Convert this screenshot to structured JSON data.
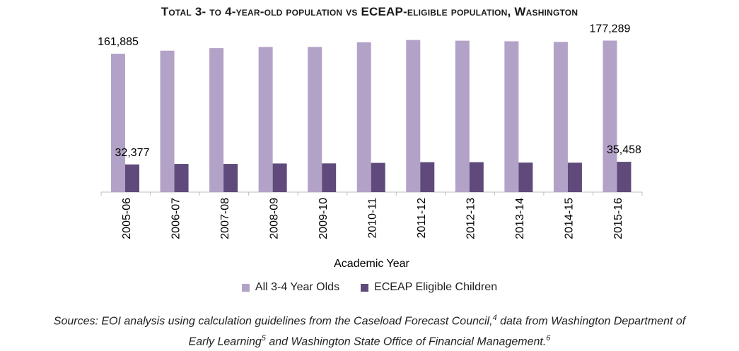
{
  "chart_data": {
    "type": "bar",
    "title": "Total 3- to 4-year-old population vs ECEAP-eligible population, Washington",
    "xlabel": "Academic Year",
    "ylabel": "",
    "ylim": [
      0,
      200000
    ],
    "grid": false,
    "legend_position": "bottom",
    "categories": [
      "2005-06",
      "2006-07",
      "2007-08",
      "2008-09",
      "2009-10",
      "2010-11",
      "2011-12",
      "2012-13",
      "2013-14",
      "2014-15",
      "2015-16"
    ],
    "series": [
      {
        "name": "All 3-4 Year Olds",
        "color": "#b3a2c7",
        "values": [
          161885,
          165500,
          168500,
          169800,
          169800,
          175300,
          178000,
          177200,
          176500,
          175800,
          177289
        ]
      },
      {
        "name": "ECEAP Eligible Children",
        "color": "#604a7b",
        "values": [
          32377,
          33000,
          33000,
          33500,
          33600,
          34200,
          35000,
          35000,
          34500,
          34400,
          35458
        ]
      }
    ],
    "data_labels": [
      {
        "series": 0,
        "index": 0,
        "text": "161,885"
      },
      {
        "series": 1,
        "index": 0,
        "text": "32,377"
      },
      {
        "series": 0,
        "index": 10,
        "text": "177,289"
      },
      {
        "series": 1,
        "index": 10,
        "text": "35,458"
      }
    ]
  },
  "sources": {
    "line1": "Sources: EOI analysis using calculation guidelines from the Caseload Forecast Council,",
    "sup1": "4",
    "line1b": " data from Washington Department of",
    "line2": "Early Learning",
    "sup2": "5",
    "line2b": "  and Washington State Office of Financial Management.",
    "sup3": "6"
  }
}
